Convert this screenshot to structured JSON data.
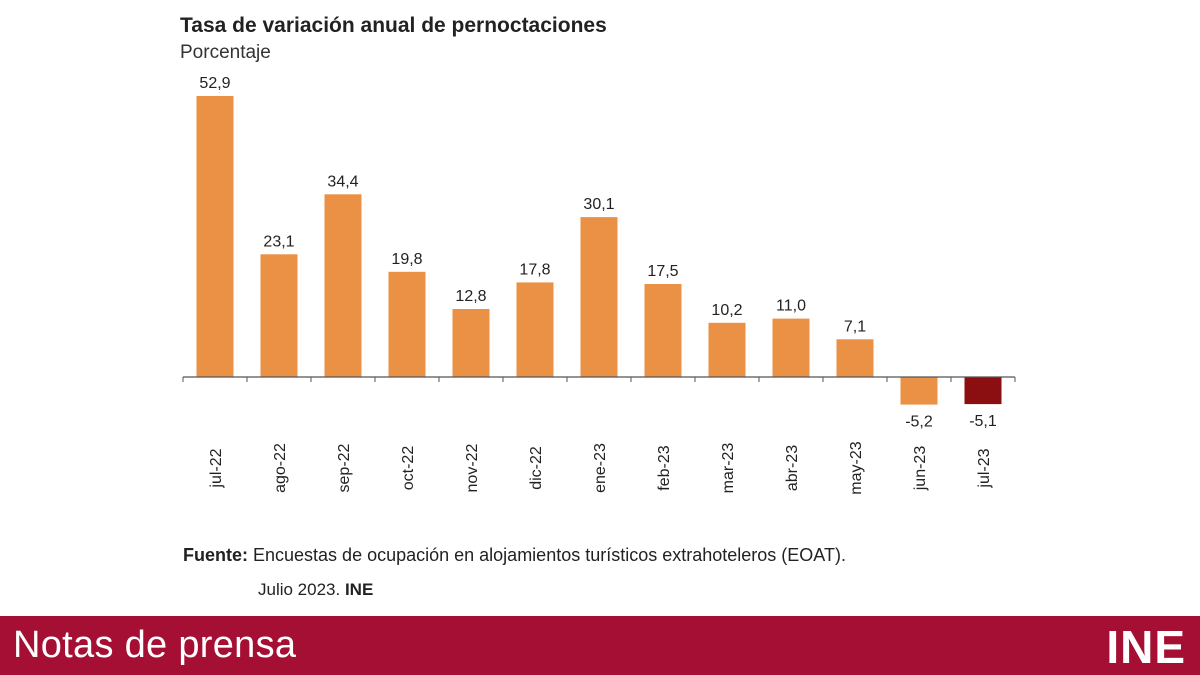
{
  "chart_data": {
    "type": "bar",
    "title": "Tasa de variación anual de pernoctaciones",
    "subtitle": "Porcentaje",
    "categories": [
      "jul-22",
      "ago-22",
      "sep-22",
      "oct-22",
      "nov-22",
      "dic-22",
      "ene-23",
      "feb-23",
      "mar-23",
      "abr-23",
      "may-23",
      "jun-23",
      "jul-23"
    ],
    "values": [
      52.9,
      23.1,
      34.4,
      19.8,
      12.8,
      17.8,
      30.1,
      17.5,
      10.2,
      11.0,
      7.1,
      -5.2,
      -5.1
    ],
    "labels": [
      "52,9",
      "23,1",
      "34,4",
      "19,8",
      "12,8",
      "17,8",
      "30,1",
      "17,5",
      "10,2",
      "11,0",
      "7,1",
      "-5,2",
      "-5,1"
    ],
    "colors": {
      "default": "#eb9146",
      "highlight": "#8b0e10"
    },
    "highlight_index": 12,
    "grid": false,
    "legend": "none"
  },
  "source": {
    "label": "Fuente:",
    "text": " Encuestas de ocupación en alojamientos turísticos extrahoteleros (EOAT).",
    "date": "Julio 2023. ",
    "org": "INE"
  },
  "footer": {
    "text": "Notas de prensa",
    "logo": "INE",
    "background": "#a50f33"
  }
}
